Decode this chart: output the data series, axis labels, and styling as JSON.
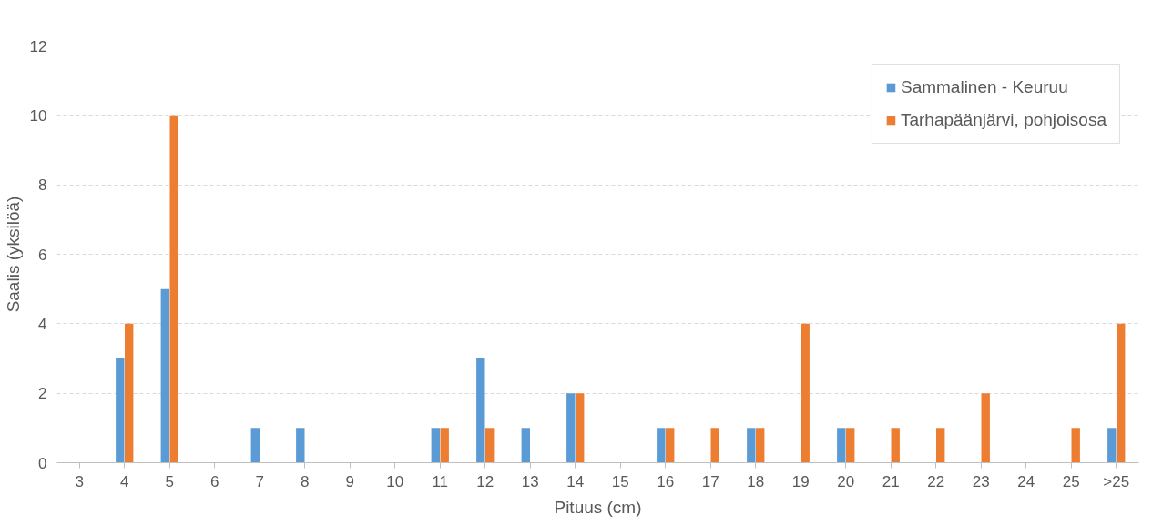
{
  "chart_data": {
    "type": "bar",
    "xlabel": "Pituus (cm)",
    "ylabel": "Saalis (yksilöä)",
    "categories": [
      "3",
      "4",
      "5",
      "6",
      "7",
      "8",
      "9",
      "10",
      "11",
      "12",
      "13",
      "14",
      "15",
      "16",
      "17",
      "18",
      "19",
      "20",
      "21",
      "22",
      "23",
      "24",
      "25",
      ">25"
    ],
    "series": [
      {
        "name": "Sammalinen - Keuruu",
        "color": "#5b9bd5",
        "values": [
          0,
          3,
          5,
          0,
          1,
          1,
          0,
          0,
          1,
          3,
          1,
          2,
          0,
          1,
          0,
          1,
          0,
          1,
          0,
          0,
          0,
          0,
          0,
          1
        ]
      },
      {
        "name": "Tarhapäänjärvi, pohjoisosa",
        "color": "#ed7d31",
        "values": [
          0,
          4,
          10,
          0,
          0,
          0,
          0,
          0,
          1,
          1,
          0,
          2,
          0,
          1,
          1,
          1,
          4,
          1,
          1,
          1,
          2,
          0,
          1,
          4
        ]
      }
    ],
    "ylim": [
      0,
      12
    ],
    "yticks": [
      0,
      2,
      4,
      6,
      8,
      10,
      12
    ],
    "grid": "y",
    "legend": "top right"
  }
}
